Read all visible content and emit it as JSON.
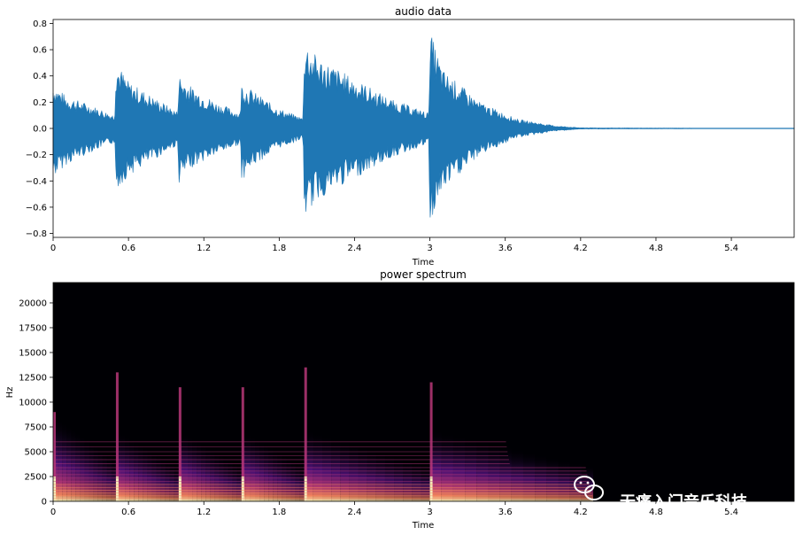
{
  "chart_data": [
    {
      "type": "line",
      "title": "audio data",
      "xlabel": "Time",
      "ylabel": "",
      "xlim": [
        0,
        5.9
      ],
      "ylim": [
        -0.83,
        0.83
      ],
      "x_ticks": [
        0,
        0.6,
        1.2,
        1.8,
        2.4,
        3,
        3.6,
        4.2,
        4.8,
        5.4
      ],
      "x_tick_labels": [
        "0",
        "0.6",
        "1.2",
        "1.8",
        "2.4",
        "3",
        "3.6",
        "4.2",
        "4.8",
        "5.4"
      ],
      "y_ticks": [
        -0.8,
        -0.6,
        -0.4,
        -0.2,
        0.0,
        0.2,
        0.4,
        0.6,
        0.8
      ],
      "y_tick_labels": [
        "−0.8",
        "−0.6",
        "−0.4",
        "−0.2",
        "0.0",
        "0.2",
        "0.4",
        "0.6",
        "0.8"
      ],
      "color": "#1f77b4",
      "envelope": {
        "x": [
          0,
          0.1,
          0.3,
          0.49,
          0.5,
          0.6,
          0.8,
          0.99,
          1.0,
          1.1,
          1.3,
          1.49,
          1.5,
          1.6,
          1.8,
          1.99,
          2.0,
          2.1,
          2.4,
          2.7,
          2.99,
          3.0,
          3.1,
          3.4,
          3.7,
          4.0,
          4.2,
          5.9
        ],
        "top": [
          0.35,
          0.25,
          0.18,
          0.1,
          0.52,
          0.36,
          0.24,
          0.13,
          0.42,
          0.32,
          0.2,
          0.12,
          0.35,
          0.28,
          0.15,
          0.08,
          0.68,
          0.55,
          0.38,
          0.22,
          0.12,
          0.75,
          0.45,
          0.2,
          0.07,
          0.02,
          0.005,
          0.0
        ],
        "bottom": [
          -0.38,
          -0.28,
          -0.18,
          -0.11,
          -0.48,
          -0.36,
          -0.24,
          -0.13,
          -0.42,
          -0.3,
          -0.2,
          -0.12,
          -0.4,
          -0.28,
          -0.15,
          -0.08,
          -0.68,
          -0.55,
          -0.38,
          -0.22,
          -0.12,
          -0.75,
          -0.48,
          -0.2,
          -0.07,
          -0.02,
          -0.005,
          0.0
        ]
      }
    },
    {
      "type": "heatmap",
      "title": "power spectrum",
      "xlabel": "Time",
      "ylabel": "Hz",
      "xlim": [
        0,
        5.9
      ],
      "ylim": [
        0,
        22050
      ],
      "x_ticks": [
        0,
        0.6,
        1.2,
        1.8,
        2.4,
        3,
        3.6,
        4.2,
        4.8,
        5.4
      ],
      "x_tick_labels": [
        "0",
        "0.6",
        "1.2",
        "1.8",
        "2.4",
        "3",
        "3.6",
        "4.2",
        "4.8",
        "5.4"
      ],
      "y_ticks": [
        0,
        2500,
        5000,
        7500,
        10000,
        12500,
        15000,
        17500,
        20000
      ],
      "y_tick_labels": [
        "0",
        "2500",
        "5000",
        "7500",
        "10000",
        "12500",
        "15000",
        "17500",
        "20000"
      ],
      "colormap": "magma",
      "onsets": [
        0,
        0.5,
        1.0,
        1.5,
        2.0,
        3.0
      ],
      "onset_max_hz": [
        9000,
        13000,
        11500,
        11500,
        13500,
        12000
      ],
      "decay_end": 4.3
    }
  ],
  "watermark": {
    "text": "无痛入门音乐科技",
    "icon": "wechat-icon"
  }
}
